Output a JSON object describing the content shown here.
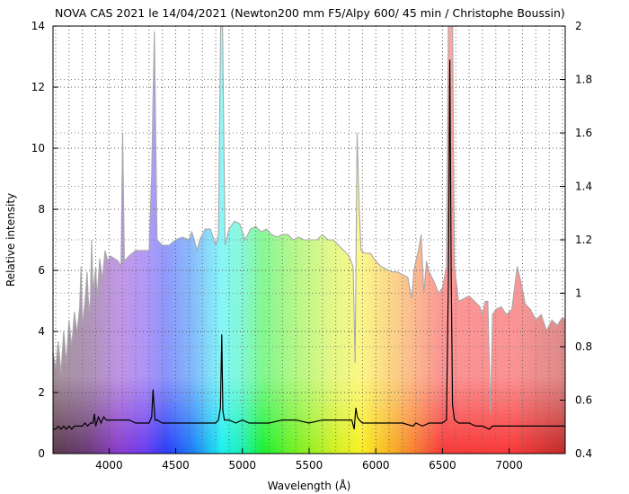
{
  "chart_data": {
    "type": "area",
    "title": "NOVA CAS 2021 le 14/04/2021 (Newton200 mm F5/Alpy 600/ 45 min / Christophe Boussin)",
    "xlabel": "Wavelength (Å)",
    "ylabel": "Relative intensity",
    "xlim": [
      3580,
      7420
    ],
    "ylim": [
      0,
      14
    ],
    "y2lim": [
      0.4,
      2.0
    ],
    "grid": true,
    "x_ticks": [
      4000,
      4500,
      5000,
      5500,
      6000,
      6500,
      7000
    ],
    "x_tick_labels": [
      "4000",
      "4500",
      "5000",
      "5500",
      "6000",
      "6500",
      "7000"
    ],
    "y_ticks": [
      0,
      2,
      4,
      6,
      8,
      10,
      12,
      14
    ],
    "y_tick_labels": [
      "0",
      "2",
      "4",
      "6",
      "8",
      "10",
      "12",
      "14"
    ],
    "y2_ticks": [
      0.4,
      0.6,
      0.8,
      1.0,
      1.2,
      1.4,
      1.6,
      1.8,
      2.0
    ],
    "y2_tick_labels": [
      "0.4",
      "0.6",
      "0.8",
      "1",
      "1.2",
      "1.4",
      "1.6",
      "1.8",
      "2"
    ],
    "series": [
      {
        "role": "continuum-scaled-filled",
        "axis": "right",
        "points": [
          [
            3580,
            0.78
          ],
          [
            3600,
            0.72
          ],
          [
            3620,
            0.82
          ],
          [
            3640,
            0.7
          ],
          [
            3660,
            0.86
          ],
          [
            3680,
            0.74
          ],
          [
            3700,
            0.9
          ],
          [
            3720,
            0.8
          ],
          [
            3740,
            0.93
          ],
          [
            3760,
            0.85
          ],
          [
            3780,
            0.95
          ],
          [
            3790,
            1.1
          ],
          [
            3800,
            0.88
          ],
          [
            3820,
            0.97
          ],
          [
            3835,
            1.08
          ],
          [
            3850,
            0.92
          ],
          [
            3860,
            0.98
          ],
          [
            3870,
            1.2
          ],
          [
            3880,
            1.0
          ],
          [
            3890,
            1.05
          ],
          [
            3900,
            1.1
          ],
          [
            3910,
            0.98
          ],
          [
            3930,
            1.13
          ],
          [
            3950,
            1.05
          ],
          [
            3970,
            1.16
          ],
          [
            3990,
            1.12
          ],
          [
            4010,
            1.14
          ],
          [
            4040,
            1.13
          ],
          [
            4070,
            1.12
          ],
          [
            4090,
            1.1
          ],
          [
            4102,
            1.6
          ],
          [
            4115,
            1.12
          ],
          [
            4150,
            1.14
          ],
          [
            4200,
            1.16
          ],
          [
            4260,
            1.16
          ],
          [
            4300,
            1.16
          ],
          [
            4320,
            1.45
          ],
          [
            4340,
            1.98
          ],
          [
            4360,
            1.2
          ],
          [
            4400,
            1.18
          ],
          [
            4450,
            1.18
          ],
          [
            4500,
            1.2
          ],
          [
            4550,
            1.21
          ],
          [
            4600,
            1.2
          ],
          [
            4620,
            1.23
          ],
          [
            4640,
            1.2
          ],
          [
            4660,
            1.16
          ],
          [
            4680,
            1.2
          ],
          [
            4720,
            1.24
          ],
          [
            4760,
            1.24
          ],
          [
            4800,
            1.18
          ],
          [
            4820,
            1.22
          ],
          [
            4838,
            2.05
          ],
          [
            4850,
            2.05
          ],
          [
            4870,
            1.18
          ],
          [
            4900,
            1.24
          ],
          [
            4940,
            1.27
          ],
          [
            4980,
            1.26
          ],
          [
            5020,
            1.2
          ],
          [
            5060,
            1.24
          ],
          [
            5100,
            1.25
          ],
          [
            5140,
            1.23
          ],
          [
            5180,
            1.24
          ],
          [
            5220,
            1.22
          ],
          [
            5260,
            1.21
          ],
          [
            5300,
            1.22
          ],
          [
            5340,
            1.22
          ],
          [
            5380,
            1.2
          ],
          [
            5420,
            1.21
          ],
          [
            5460,
            1.2
          ],
          [
            5500,
            1.2
          ],
          [
            5560,
            1.2
          ],
          [
            5600,
            1.22
          ],
          [
            5640,
            1.2
          ],
          [
            5680,
            1.2
          ],
          [
            5720,
            1.18
          ],
          [
            5760,
            1.16
          ],
          [
            5800,
            1.14
          ],
          [
            5830,
            1.1
          ],
          [
            5845,
            0.74
          ],
          [
            5860,
            1.6
          ],
          [
            5875,
            1.32
          ],
          [
            5890,
            1.16
          ],
          [
            5920,
            1.15
          ],
          [
            5960,
            1.15
          ],
          [
            6000,
            1.12
          ],
          [
            6040,
            1.1
          ],
          [
            6080,
            1.09
          ],
          [
            6120,
            1.08
          ],
          [
            6160,
            1.08
          ],
          [
            6200,
            1.07
          ],
          [
            6240,
            1.06
          ],
          [
            6270,
            0.98
          ],
          [
            6285,
            1.08
          ],
          [
            6300,
            1.12
          ],
          [
            6320,
            1.16
          ],
          [
            6340,
            1.22
          ],
          [
            6360,
            1.0
          ],
          [
            6380,
            1.12
          ],
          [
            6400,
            1.08
          ],
          [
            6420,
            1.06
          ],
          [
            6440,
            1.04
          ],
          [
            6470,
            1.0
          ],
          [
            6500,
            1.02
          ],
          [
            6530,
            1.1
          ],
          [
            6545,
            2.05
          ],
          [
            6575,
            2.05
          ],
          [
            6590,
            1.1
          ],
          [
            6620,
            0.97
          ],
          [
            6660,
            0.98
          ],
          [
            6700,
            0.99
          ],
          [
            6740,
            0.97
          ],
          [
            6780,
            0.95
          ],
          [
            6800,
            0.92
          ],
          [
            6820,
            0.97
          ],
          [
            6840,
            0.97
          ],
          [
            6860,
            0.55
          ],
          [
            6875,
            0.92
          ],
          [
            6900,
            0.94
          ],
          [
            6940,
            0.95
          ],
          [
            6980,
            0.92
          ],
          [
            7020,
            0.94
          ],
          [
            7060,
            1.1
          ],
          [
            7090,
            1.04
          ],
          [
            7120,
            0.96
          ],
          [
            7160,
            0.94
          ],
          [
            7200,
            0.9
          ],
          [
            7240,
            0.92
          ],
          [
            7280,
            0.86
          ],
          [
            7320,
            0.9
          ],
          [
            7360,
            0.88
          ],
          [
            7400,
            0.91
          ],
          [
            7420,
            0.9
          ]
        ]
      },
      {
        "role": "spectrum-line",
        "axis": "left",
        "points": [
          [
            3580,
            0.8
          ],
          [
            3600,
            0.8
          ],
          [
            3620,
            0.9
          ],
          [
            3640,
            0.8
          ],
          [
            3660,
            0.9
          ],
          [
            3680,
            0.8
          ],
          [
            3700,
            0.9
          ],
          [
            3720,
            0.8
          ],
          [
            3740,
            0.9
          ],
          [
            3760,
            0.9
          ],
          [
            3780,
            0.9
          ],
          [
            3800,
            0.9
          ],
          [
            3820,
            1.0
          ],
          [
            3840,
            0.9
          ],
          [
            3860,
            1.0
          ],
          [
            3880,
            1.0
          ],
          [
            3890,
            1.3
          ],
          [
            3900,
            0.9
          ],
          [
            3920,
            1.2
          ],
          [
            3940,
            1.0
          ],
          [
            3960,
            1.2
          ],
          [
            3980,
            1.1
          ],
          [
            4000,
            1.1
          ],
          [
            4050,
            1.1
          ],
          [
            4100,
            1.1
          ],
          [
            4150,
            1.1
          ],
          [
            4200,
            1.0
          ],
          [
            4250,
            1.0
          ],
          [
            4300,
            1.0
          ],
          [
            4320,
            1.2
          ],
          [
            4330,
            2.1
          ],
          [
            4345,
            1.1
          ],
          [
            4360,
            1.1
          ],
          [
            4400,
            1.0
          ],
          [
            4450,
            1.0
          ],
          [
            4500,
            1.0
          ],
          [
            4550,
            1.0
          ],
          [
            4600,
            1.0
          ],
          [
            4640,
            1.0
          ],
          [
            4680,
            1.0
          ],
          [
            4720,
            1.0
          ],
          [
            4760,
            1.0
          ],
          [
            4800,
            1.0
          ],
          [
            4820,
            1.1
          ],
          [
            4835,
            1.5
          ],
          [
            4845,
            3.9
          ],
          [
            4853,
            1.4
          ],
          [
            4865,
            1.1
          ],
          [
            4900,
            1.1
          ],
          [
            4950,
            1.0
          ],
          [
            5000,
            1.1
          ],
          [
            5050,
            1.0
          ],
          [
            5100,
            1.0
          ],
          [
            5150,
            1.0
          ],
          [
            5200,
            1.0
          ],
          [
            5300,
            1.1
          ],
          [
            5400,
            1.1
          ],
          [
            5500,
            1.0
          ],
          [
            5600,
            1.1
          ],
          [
            5700,
            1.1
          ],
          [
            5780,
            1.1
          ],
          [
            5820,
            1.1
          ],
          [
            5838,
            0.8
          ],
          [
            5850,
            1.5
          ],
          [
            5862,
            1.2
          ],
          [
            5875,
            1.1
          ],
          [
            5900,
            1.0
          ],
          [
            5950,
            1.0
          ],
          [
            6000,
            1.0
          ],
          [
            6100,
            1.0
          ],
          [
            6200,
            1.0
          ],
          [
            6280,
            0.9
          ],
          [
            6300,
            1.0
          ],
          [
            6350,
            0.9
          ],
          [
            6400,
            1.0
          ],
          [
            6450,
            1.0
          ],
          [
            6500,
            1.0
          ],
          [
            6530,
            1.1
          ],
          [
            6545,
            6.0
          ],
          [
            6555,
            12.9
          ],
          [
            6565,
            6.0
          ],
          [
            6575,
            1.6
          ],
          [
            6590,
            1.1
          ],
          [
            6620,
            1.0
          ],
          [
            6650,
            1.0
          ],
          [
            6700,
            1.0
          ],
          [
            6750,
            0.9
          ],
          [
            6800,
            0.9
          ],
          [
            6850,
            0.8
          ],
          [
            6875,
            0.9
          ],
          [
            6900,
            0.9
          ],
          [
            7000,
            0.9
          ],
          [
            7100,
            0.9
          ],
          [
            7200,
            0.9
          ],
          [
            7300,
            0.9
          ],
          [
            7420,
            0.9
          ]
        ]
      }
    ]
  }
}
